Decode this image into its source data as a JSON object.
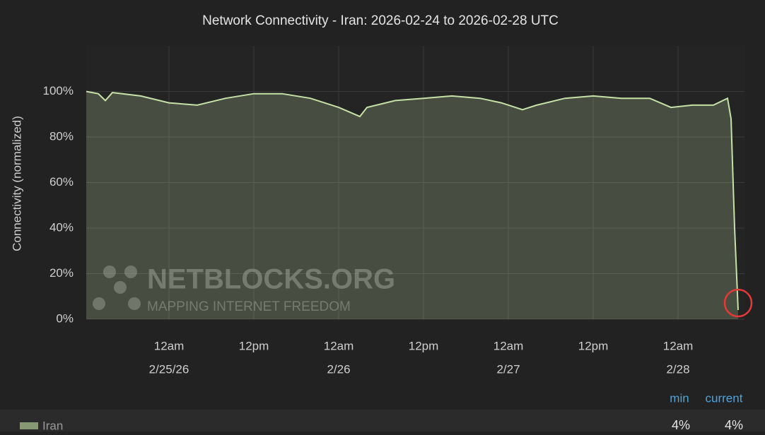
{
  "chart_data": {
    "type": "area",
    "title": "Network Connectivity - Iran: 2026-02-24 to 2026-02-28 UTC",
    "y_label": "Connectivity (normalized)",
    "watermark": "NETBLOCKS.ORG",
    "watermark_tagline": "MAPPING INTERNET FREEDOM",
    "x": [
      "2026-02-24T12:18",
      "2026-02-24T14:00",
      "2026-02-24T15:00",
      "2026-02-24T16:00",
      "2026-02-24T20:00",
      "2026-02-25T00:00",
      "2026-02-25T04:00",
      "2026-02-25T08:00",
      "2026-02-25T12:00",
      "2026-02-25T16:00",
      "2026-02-25T20:00",
      "2026-02-26T00:00",
      "2026-02-26T03:00",
      "2026-02-26T04:00",
      "2026-02-26T08:00",
      "2026-02-26T12:00",
      "2026-02-26T16:00",
      "2026-02-26T20:00",
      "2026-02-26T23:00",
      "2026-02-27T02:00",
      "2026-02-27T04:00",
      "2026-02-27T08:00",
      "2026-02-27T12:00",
      "2026-02-27T16:00",
      "2026-02-27T20:00",
      "2026-02-27T23:00",
      "2026-02-28T02:00",
      "2026-02-28T05:00",
      "2026-02-28T07:00",
      "2026-02-28T07:30",
      "2026-02-28T08:00",
      "2026-02-28T08:30"
    ],
    "series": [
      {
        "name": "Iran",
        "color": "#c5e1a5",
        "values": [
          100,
          99,
          96,
          99.5,
          98,
          95,
          94,
          97,
          99,
          99,
          97,
          93,
          89,
          93,
          96,
          97,
          98,
          97,
          95,
          92,
          94,
          97,
          98,
          97,
          97,
          93,
          94,
          94,
          97,
          88,
          40,
          4
        ]
      }
    ],
    "xlim": [
      "2026-02-24T12:18",
      "2026-02-28T09:24"
    ],
    "xticks": [
      {
        "value": "2026-02-25T00:00",
        "label": "12am"
      },
      {
        "value": "2026-02-25T12:00",
        "label": "12pm"
      },
      {
        "value": "2026-02-26T00:00",
        "label": "12am"
      },
      {
        "value": "2026-02-26T12:00",
        "label": "12pm"
      },
      {
        "value": "2026-02-27T00:00",
        "label": "12am"
      },
      {
        "value": "2026-02-27T12:00",
        "label": "12pm"
      },
      {
        "value": "2026-02-28T00:00",
        "label": "12am"
      }
    ],
    "xtick_dates": [
      {
        "value": "2026-02-25T00:00",
        "label": "2/25/26"
      },
      {
        "value": "2026-02-26T00:00",
        "label": "2/26"
      },
      {
        "value": "2026-02-27T00:00",
        "label": "2/27"
      },
      {
        "value": "2026-02-28T00:00",
        "label": "2/28"
      }
    ],
    "ylim": [
      0,
      120
    ],
    "yticks": [
      {
        "value": 0,
        "label": "0%"
      },
      {
        "value": 20,
        "label": "20%"
      },
      {
        "value": 40,
        "label": "40%"
      },
      {
        "value": 60,
        "label": "60%"
      },
      {
        "value": 80,
        "label": "80%"
      },
      {
        "value": 100,
        "label": "100%"
      }
    ],
    "grid": true,
    "stats": {
      "headers": [
        "min",
        "current"
      ],
      "values": [
        4,
        4
      ],
      "value_labels": [
        "4%",
        "4%"
      ]
    }
  }
}
